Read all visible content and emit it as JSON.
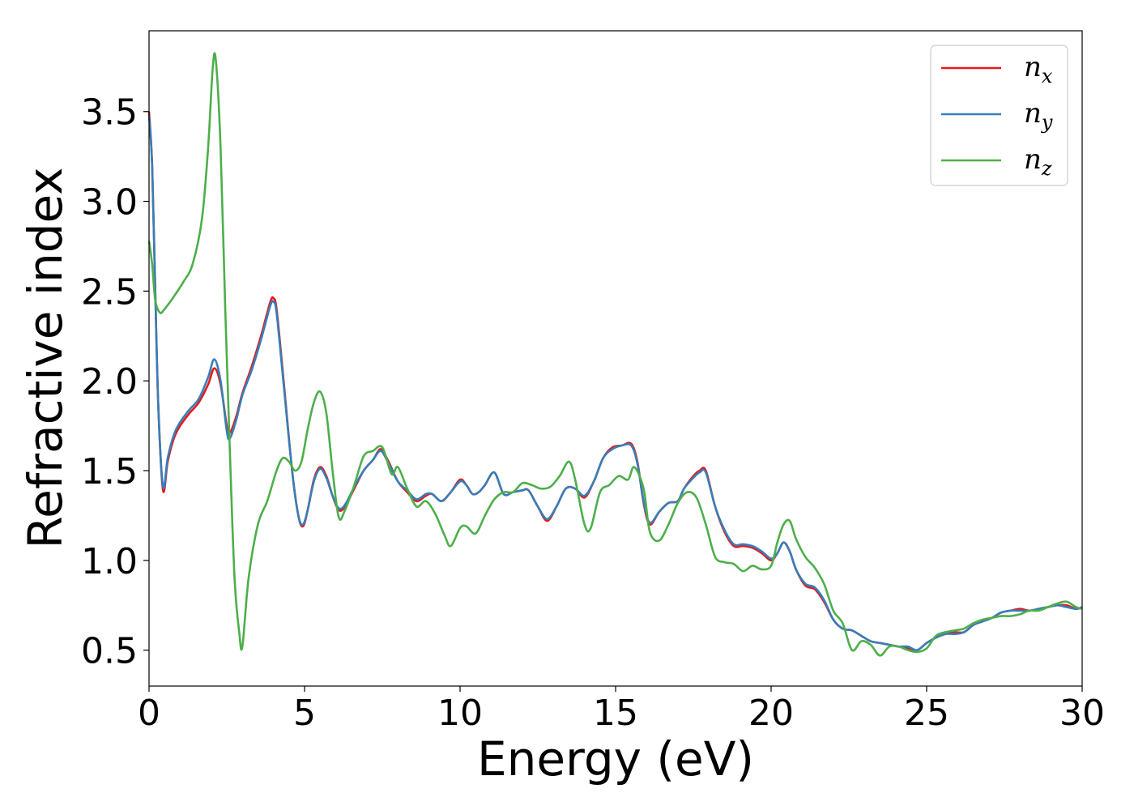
{
  "chart_data": {
    "type": "line",
    "title": "",
    "xlabel": "Energy (eV)",
    "ylabel": "Refractive index",
    "xlim": [
      0,
      30
    ],
    "ylim": [
      0.3,
      3.95
    ],
    "xticks": [
      0,
      5,
      10,
      15,
      20,
      25,
      30
    ],
    "xtick_labels": [
      "0",
      "5",
      "10",
      "15",
      "20",
      "25",
      "30"
    ],
    "yticks": [
      0.5,
      1.0,
      1.5,
      2.0,
      2.5,
      3.0,
      3.5
    ],
    "ytick_labels": [
      "0.5",
      "1.0",
      "1.5",
      "2.0",
      "2.5",
      "3.0",
      "3.5"
    ],
    "grid": false,
    "legend_position": "top-right",
    "series": [
      {
        "name": "n_x",
        "legend_base": "n",
        "legend_sub": "x",
        "color": "#e41a1c",
        "x": [
          0,
          0.1,
          0.2,
          0.3,
          0.45,
          0.6,
          0.8,
          1.0,
          1.3,
          1.6,
          1.9,
          2.1,
          2.3,
          2.5,
          2.6,
          2.8,
          3.0,
          3.3,
          3.6,
          3.9,
          4.0,
          4.1,
          4.3,
          4.6,
          4.8,
          4.95,
          5.1,
          5.3,
          5.5,
          5.7,
          5.9,
          6.1,
          6.3,
          6.6,
          6.9,
          7.2,
          7.45,
          7.7,
          8.0,
          8.3,
          8.6,
          8.9,
          9.1,
          9.4,
          9.7,
          10.0,
          10.2,
          10.4,
          10.6,
          10.8,
          11.1,
          11.4,
          11.7,
          12.0,
          12.2,
          12.5,
          12.8,
          13.1,
          13.4,
          13.7,
          14.0,
          14.3,
          14.6,
          14.9,
          15.2,
          15.5,
          15.7,
          15.9,
          16.1,
          16.4,
          16.7,
          17.0,
          17.2,
          17.5,
          17.7,
          17.9,
          18.2,
          18.5,
          18.8,
          19.1,
          19.4,
          19.7,
          20.0,
          20.2,
          20.4,
          20.6,
          20.8,
          21.1,
          21.4,
          21.7,
          22.0,
          22.3,
          22.6,
          22.9,
          23.2,
          23.5,
          23.8,
          24.1,
          24.4,
          24.7,
          25.0,
          25.3,
          25.6,
          25.9,
          26.2,
          26.5,
          26.8,
          27.1,
          27.4,
          27.7,
          28.0,
          28.3,
          28.6,
          28.9,
          29.2,
          29.5,
          29.8,
          30.0
        ],
        "y": [
          3.5,
          3.2,
          2.5,
          1.85,
          1.39,
          1.55,
          1.68,
          1.75,
          1.82,
          1.88,
          1.98,
          2.07,
          1.98,
          1.75,
          1.71,
          1.8,
          1.93,
          2.08,
          2.25,
          2.44,
          2.46,
          2.4,
          2.05,
          1.5,
          1.25,
          1.19,
          1.28,
          1.45,
          1.52,
          1.47,
          1.36,
          1.28,
          1.3,
          1.4,
          1.5,
          1.56,
          1.62,
          1.55,
          1.44,
          1.38,
          1.33,
          1.36,
          1.37,
          1.33,
          1.38,
          1.45,
          1.42,
          1.37,
          1.38,
          1.42,
          1.49,
          1.37,
          1.38,
          1.39,
          1.39,
          1.3,
          1.22,
          1.3,
          1.4,
          1.4,
          1.35,
          1.44,
          1.57,
          1.63,
          1.64,
          1.65,
          1.55,
          1.32,
          1.2,
          1.27,
          1.32,
          1.33,
          1.4,
          1.47,
          1.5,
          1.5,
          1.3,
          1.16,
          1.08,
          1.08,
          1.07,
          1.04,
          1.0,
          1.04,
          1.1,
          1.05,
          0.95,
          0.86,
          0.84,
          0.77,
          0.67,
          0.62,
          0.61,
          0.58,
          0.55,
          0.54,
          0.53,
          0.52,
          0.51,
          0.5,
          0.54,
          0.57,
          0.59,
          0.6,
          0.6,
          0.64,
          0.66,
          0.68,
          0.71,
          0.72,
          0.73,
          0.72,
          0.73,
          0.74,
          0.75,
          0.75,
          0.73,
          0.74
        ]
      },
      {
        "name": "n_y",
        "legend_base": "n",
        "legend_sub": "y",
        "color": "#377eb8",
        "x": [
          0,
          0.1,
          0.2,
          0.3,
          0.45,
          0.6,
          0.8,
          1.0,
          1.3,
          1.6,
          1.9,
          2.1,
          2.3,
          2.5,
          2.6,
          2.8,
          3.0,
          3.3,
          3.6,
          3.9,
          4.0,
          4.1,
          4.3,
          4.6,
          4.8,
          4.95,
          5.1,
          5.3,
          5.5,
          5.7,
          5.9,
          6.1,
          6.3,
          6.6,
          6.9,
          7.2,
          7.45,
          7.7,
          8.0,
          8.3,
          8.6,
          8.9,
          9.1,
          9.4,
          9.7,
          10.0,
          10.2,
          10.4,
          10.6,
          10.8,
          11.1,
          11.4,
          11.7,
          12.0,
          12.2,
          12.5,
          12.8,
          13.1,
          13.4,
          13.7,
          14.0,
          14.3,
          14.6,
          14.9,
          15.2,
          15.5,
          15.7,
          15.9,
          16.1,
          16.4,
          16.7,
          17.0,
          17.2,
          17.5,
          17.7,
          17.9,
          18.2,
          18.5,
          18.8,
          19.1,
          19.4,
          19.7,
          20.0,
          20.2,
          20.4,
          20.6,
          20.8,
          21.1,
          21.4,
          21.7,
          22.0,
          22.3,
          22.6,
          22.9,
          23.2,
          23.5,
          23.8,
          24.1,
          24.4,
          24.7,
          25.0,
          25.3,
          25.6,
          25.9,
          26.2,
          26.5,
          26.8,
          27.1,
          27.4,
          27.7,
          28.0,
          28.3,
          28.6,
          28.9,
          29.2,
          29.5,
          29.8,
          30.0
        ],
        "y": [
          3.48,
          3.2,
          2.5,
          1.85,
          1.41,
          1.57,
          1.7,
          1.77,
          1.84,
          1.9,
          2.02,
          2.12,
          2.0,
          1.72,
          1.68,
          1.78,
          1.92,
          2.06,
          2.23,
          2.42,
          2.44,
          2.38,
          2.03,
          1.5,
          1.25,
          1.2,
          1.28,
          1.44,
          1.51,
          1.46,
          1.36,
          1.29,
          1.31,
          1.41,
          1.5,
          1.56,
          1.61,
          1.54,
          1.44,
          1.39,
          1.34,
          1.37,
          1.37,
          1.33,
          1.38,
          1.44,
          1.42,
          1.37,
          1.38,
          1.42,
          1.49,
          1.37,
          1.38,
          1.39,
          1.39,
          1.3,
          1.23,
          1.3,
          1.4,
          1.4,
          1.36,
          1.44,
          1.57,
          1.62,
          1.64,
          1.64,
          1.54,
          1.33,
          1.21,
          1.27,
          1.32,
          1.33,
          1.4,
          1.46,
          1.49,
          1.49,
          1.3,
          1.17,
          1.09,
          1.09,
          1.08,
          1.05,
          1.01,
          1.04,
          1.1,
          1.05,
          0.95,
          0.87,
          0.85,
          0.78,
          0.67,
          0.62,
          0.61,
          0.58,
          0.55,
          0.54,
          0.53,
          0.52,
          0.52,
          0.5,
          0.54,
          0.57,
          0.59,
          0.59,
          0.6,
          0.64,
          0.66,
          0.68,
          0.71,
          0.72,
          0.72,
          0.72,
          0.73,
          0.74,
          0.75,
          0.74,
          0.73,
          0.74
        ]
      },
      {
        "name": "n_z",
        "legend_base": "n",
        "legend_sub": "z",
        "color": "#4daf4a",
        "x": [
          0,
          0.1,
          0.2,
          0.35,
          0.5,
          0.8,
          1.1,
          1.4,
          1.7,
          1.9,
          2.05,
          2.15,
          2.3,
          2.45,
          2.6,
          2.75,
          2.9,
          3.0,
          3.2,
          3.5,
          3.8,
          4.1,
          4.3,
          4.5,
          4.7,
          4.9,
          5.1,
          5.3,
          5.5,
          5.7,
          5.9,
          6.1,
          6.3,
          6.6,
          6.9,
          7.2,
          7.5,
          7.8,
          8.0,
          8.3,
          8.6,
          8.9,
          9.2,
          9.5,
          9.7,
          10.0,
          10.2,
          10.5,
          10.8,
          11.1,
          11.4,
          11.7,
          12.0,
          12.3,
          12.6,
          12.9,
          13.2,
          13.5,
          13.7,
          14.0,
          14.2,
          14.5,
          14.8,
          15.1,
          15.4,
          15.6,
          15.9,
          16.1,
          16.4,
          16.7,
          17.0,
          17.3,
          17.6,
          17.9,
          18.2,
          18.5,
          18.8,
          19.1,
          19.4,
          19.7,
          20.0,
          20.2,
          20.4,
          20.6,
          20.8,
          21.1,
          21.4,
          21.7,
          22.0,
          22.3,
          22.6,
          22.9,
          23.2,
          23.5,
          23.8,
          24.1,
          24.4,
          24.7,
          25.0,
          25.3,
          25.6,
          25.9,
          26.2,
          26.5,
          26.8,
          27.1,
          27.4,
          27.7,
          28.0,
          28.3,
          28.6,
          28.9,
          29.2,
          29.5,
          29.8,
          30.0
        ],
        "y": [
          2.78,
          2.65,
          2.45,
          2.38,
          2.4,
          2.47,
          2.55,
          2.65,
          2.9,
          3.3,
          3.75,
          3.78,
          3.3,
          2.4,
          1.6,
          0.9,
          0.6,
          0.52,
          0.9,
          1.2,
          1.33,
          1.5,
          1.57,
          1.55,
          1.5,
          1.55,
          1.73,
          1.88,
          1.94,
          1.82,
          1.5,
          1.24,
          1.28,
          1.42,
          1.58,
          1.61,
          1.63,
          1.48,
          1.52,
          1.4,
          1.3,
          1.33,
          1.26,
          1.14,
          1.08,
          1.18,
          1.19,
          1.15,
          1.25,
          1.34,
          1.38,
          1.38,
          1.43,
          1.42,
          1.4,
          1.41,
          1.47,
          1.55,
          1.45,
          1.2,
          1.18,
          1.38,
          1.42,
          1.47,
          1.45,
          1.52,
          1.4,
          1.16,
          1.11,
          1.2,
          1.32,
          1.38,
          1.35,
          1.2,
          1.02,
          0.99,
          0.98,
          0.94,
          0.97,
          0.95,
          0.97,
          1.1,
          1.2,
          1.22,
          1.12,
          1.02,
          0.96,
          0.87,
          0.72,
          0.65,
          0.5,
          0.55,
          0.53,
          0.47,
          0.52,
          0.52,
          0.5,
          0.49,
          0.51,
          0.58,
          0.6,
          0.61,
          0.62,
          0.65,
          0.67,
          0.68,
          0.69,
          0.69,
          0.7,
          0.72,
          0.72,
          0.74,
          0.76,
          0.77,
          0.74,
          0.73
        ]
      }
    ]
  }
}
